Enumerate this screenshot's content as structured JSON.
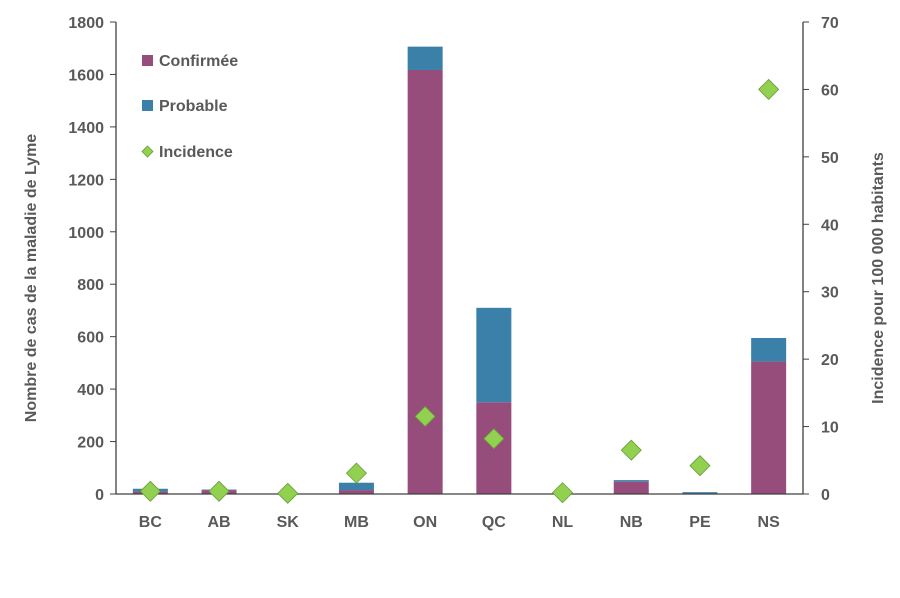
{
  "chart_data": {
    "type": "bar",
    "stacked": true,
    "categories": [
      "BC",
      "AB",
      "SK",
      "MB",
      "ON",
      "QC",
      "NL",
      "NB",
      "PE",
      "NS"
    ],
    "series": [
      {
        "name": "Confirmée",
        "axis": "left",
        "color": "#974D7B",
        "values": [
          10,
          15,
          1,
          15,
          1617,
          350,
          0,
          47,
          1,
          505
        ]
      },
      {
        "name": "Probable",
        "axis": "left",
        "color": "#3A80A9",
        "values": [
          10,
          2,
          0,
          28,
          89,
          360,
          0,
          6,
          6,
          90
        ]
      },
      {
        "name": "Incidence",
        "axis": "right",
        "type": "scatter",
        "marker": "diamond",
        "color": "#92D050",
        "values": [
          0.4,
          0.4,
          0.1,
          3.1,
          11.5,
          8.2,
          0.2,
          6.5,
          4.2,
          60
        ]
      }
    ],
    "ylabel": "Nombre de cas de la maladie de Lyme",
    "y2label": "Incidence pour 100 000 habitants",
    "ylim": [
      0,
      1800
    ],
    "y2lim": [
      0,
      70
    ],
    "yticks": [
      0,
      200,
      400,
      600,
      800,
      1000,
      1200,
      1400,
      1600,
      1800
    ],
    "y2ticks": [
      0,
      10,
      20,
      30,
      40,
      50,
      60,
      70
    ],
    "legend": "top-left",
    "grid": false
  }
}
